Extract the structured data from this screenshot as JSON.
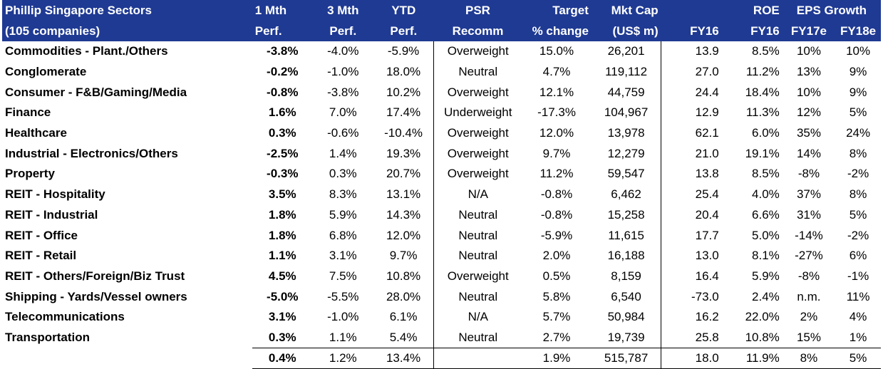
{
  "header": {
    "row1": [
      "Phillip Singapore Sectors",
      "1 Mth",
      "3 Mth",
      "YTD",
      "PSR",
      "Target",
      "Mkt Cap",
      "",
      "ROE",
      "EPS Growth",
      ""
    ],
    "row2": [
      "(105 companies)",
      "Perf.",
      "Perf.",
      "Perf.",
      "Recomm",
      "% change",
      "(US$ m)",
      "FY16",
      "FY16",
      "FY17e",
      "FY18e"
    ]
  },
  "rows": [
    [
      "Commodities - Plant./Others",
      "-3.8%",
      "-4.0%",
      "-5.9%",
      "Overweight",
      "15.0%",
      "26,201",
      "13.9",
      "8.5%",
      "10%",
      "10%"
    ],
    [
      "Conglomerate",
      "-0.2%",
      "-1.0%",
      "18.0%",
      "Neutral",
      "4.7%",
      "119,112",
      "27.0",
      "11.2%",
      "13%",
      "9%"
    ],
    [
      "Consumer - F&B/Gaming/Media",
      "-0.8%",
      "-3.8%",
      "10.2%",
      "Overweight",
      "12.1%",
      "44,759",
      "24.4",
      "18.4%",
      "10%",
      "9%"
    ],
    [
      "Finance",
      "1.6%",
      "7.0%",
      "17.4%",
      "Underweight",
      "-17.3%",
      "104,967",
      "12.9",
      "11.3%",
      "12%",
      "5%"
    ],
    [
      "Healthcare",
      "0.3%",
      "-0.6%",
      "-10.4%",
      "Overweight",
      "12.0%",
      "13,978",
      "62.1",
      "6.0%",
      "35%",
      "24%"
    ],
    [
      "Industrial - Electronics/Others",
      "-2.5%",
      "1.4%",
      "19.3%",
      "Overweight",
      "9.7%",
      "12,279",
      "21.0",
      "19.1%",
      "14%",
      "8%"
    ],
    [
      "Property",
      "-0.3%",
      "0.3%",
      "20.7%",
      "Overweight",
      "11.2%",
      "59,547",
      "13.8",
      "8.5%",
      "-8%",
      "-2%"
    ],
    [
      "REIT - Hospitality",
      "3.5%",
      "8.3%",
      "13.1%",
      "N/A",
      "-0.8%",
      "6,462",
      "25.4",
      "4.0%",
      "37%",
      "8%"
    ],
    [
      "REIT - Industrial",
      "1.8%",
      "5.9%",
      "14.3%",
      "Neutral",
      "-0.8%",
      "15,258",
      "20.4",
      "6.6%",
      "31%",
      "5%"
    ],
    [
      "REIT - Office",
      "1.8%",
      "6.8%",
      "12.0%",
      "Neutral",
      "-5.9%",
      "11,615",
      "17.7",
      "5.0%",
      "-14%",
      "-2%"
    ],
    [
      "REIT - Retail",
      "1.1%",
      "3.1%",
      "9.7%",
      "Neutral",
      "2.0%",
      "16,188",
      "13.0",
      "8.1%",
      "-27%",
      "6%"
    ],
    [
      "REIT - Others/Foreign/Biz Trust",
      "4.5%",
      "7.5%",
      "10.8%",
      "Overweight",
      "0.5%",
      "8,159",
      "16.4",
      "5.9%",
      "-8%",
      "-1%"
    ],
    [
      "Shipping - Yards/Vessel owners",
      "-5.0%",
      "-5.5%",
      "28.0%",
      "Neutral",
      "5.8%",
      "6,540",
      "-73.0",
      "2.4%",
      "n.m.",
      "11%"
    ],
    [
      "Telecommunications",
      "3.1%",
      "-1.0%",
      "6.1%",
      "N/A",
      "5.7%",
      "50,984",
      "16.2",
      "22.0%",
      "2%",
      "4%"
    ],
    [
      "Transportation",
      "0.3%",
      "1.1%",
      "5.4%",
      "Neutral",
      "2.7%",
      "19,739",
      "25.8",
      "10.8%",
      "15%",
      "1%"
    ]
  ],
  "total": [
    "",
    "0.4%",
    "1.2%",
    "13.4%",
    "",
    "1.9%",
    "515,787",
    "18.0",
    "11.9%",
    "8%",
    "5%"
  ]
}
